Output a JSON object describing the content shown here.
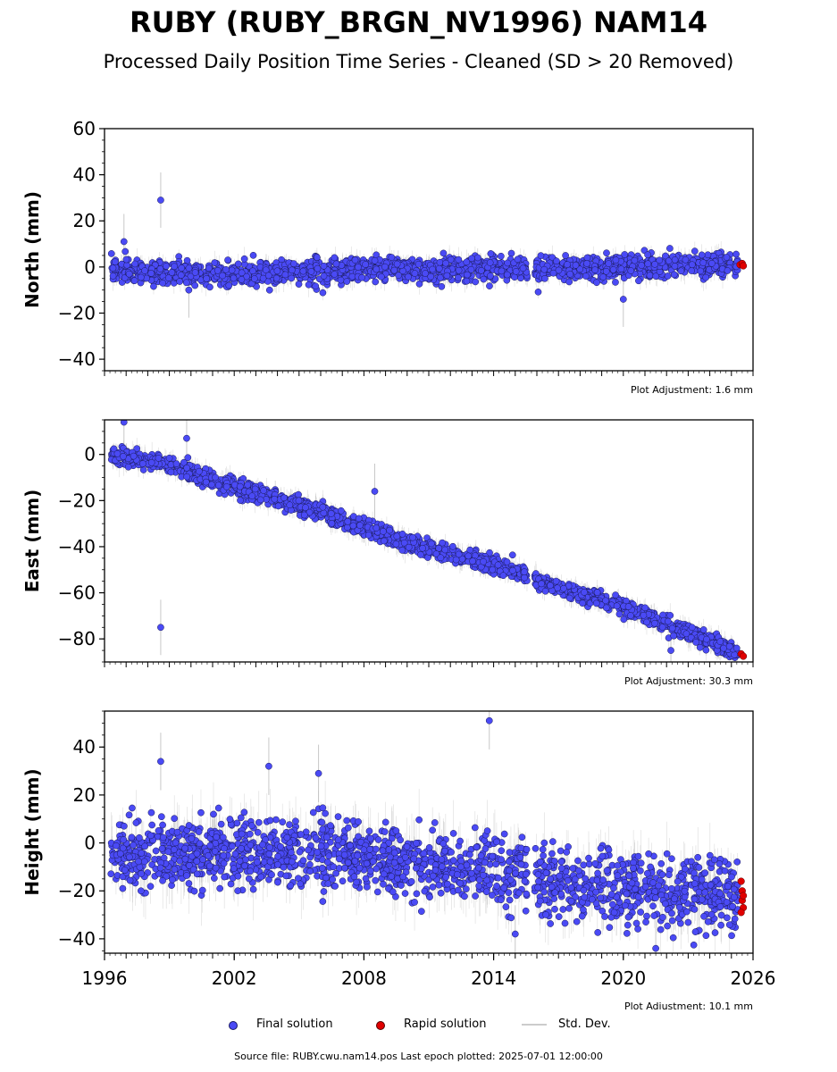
{
  "header": {
    "title": "RUBY (RUBY_BRGN_NV1996) NAM14",
    "subtitle": "Processed Daily Position Time Series - Cleaned (SD > 20 Removed)"
  },
  "chart_data": [
    {
      "type": "scatter",
      "ylabel": "North (mm)",
      "ylim": [
        -45,
        60
      ],
      "yticks": [
        -40,
        -20,
        0,
        20,
        40,
        60
      ],
      "xlim": [
        1996,
        2026
      ],
      "adjustment": "Plot Adjustment: 1.6 mm",
      "trend": [
        [
          1996.3,
          -1
        ],
        [
          1999.5,
          -3
        ],
        [
          2003,
          -3
        ],
        [
          2008,
          -1
        ],
        [
          2015,
          -1
        ],
        [
          2020,
          0
        ],
        [
          2025.5,
          1.5
        ]
      ],
      "scatter_sd": 2.5,
      "outliers": [
        [
          1998.6,
          29
        ],
        [
          2020.0,
          -14
        ],
        [
          1996.9,
          11
        ],
        [
          1999.9,
          -10
        ]
      ],
      "rapid_points": [
        [
          2025.4,
          1
        ],
        [
          2025.5,
          1.5
        ],
        [
          2025.55,
          0.5
        ]
      ]
    },
    {
      "type": "scatter",
      "ylabel": "East (mm)",
      "ylim": [
        -90,
        15
      ],
      "yticks": [
        -80,
        -60,
        -40,
        -20,
        0
      ],
      "xlim": [
        1996,
        2026
      ],
      "adjustment": "Plot Adjustment: 30.3 mm",
      "trend": [
        [
          1996.3,
          0
        ],
        [
          1999.3,
          -5
        ],
        [
          2000.5,
          -10
        ],
        [
          2005,
          -22
        ],
        [
          2010,
          -38
        ],
        [
          2015.5,
          -52
        ],
        [
          2016,
          -55
        ],
        [
          2020,
          -66
        ],
        [
          2025.5,
          -87
        ]
      ],
      "scatter_sd": 1.8,
      "outliers": [
        [
          1998.6,
          -75
        ],
        [
          1996.9,
          14
        ],
        [
          1999.8,
          7
        ],
        [
          2008.5,
          -16
        ],
        [
          2022.2,
          -85
        ]
      ],
      "rapid_points": [
        [
          2025.45,
          -86.5
        ],
        [
          2025.55,
          -87.5
        ]
      ]
    },
    {
      "type": "scatter",
      "ylabel": "Height (mm)",
      "ylim": [
        -46,
        55
      ],
      "yticks": [
        -40,
        -20,
        0,
        20,
        40
      ],
      "xlim": [
        1996,
        2026
      ],
      "xticks": [
        1996,
        2002,
        2008,
        2014,
        2020,
        2026
      ],
      "adjustment": "Plot Adjustment: 10.1 mm",
      "trend": [
        [
          1996.3,
          -5
        ],
        [
          2002,
          -4
        ],
        [
          2008,
          -6
        ],
        [
          2012,
          -10
        ],
        [
          2015.5,
          -12
        ],
        [
          2016,
          -17
        ],
        [
          2020,
          -20
        ],
        [
          2025.5,
          -22
        ]
      ],
      "scatter_sd": 7,
      "outliers": [
        [
          2013.8,
          51
        ],
        [
          1998.6,
          34
        ],
        [
          2003.6,
          32
        ],
        [
          2005.9,
          29
        ],
        [
          2015.0,
          -38
        ],
        [
          2021.5,
          -44
        ]
      ],
      "rapid_points": [
        [
          2025.45,
          -16
        ],
        [
          2025.5,
          -20
        ],
        [
          2025.5,
          -24
        ],
        [
          2025.55,
          -27
        ],
        [
          2025.45,
          -29
        ],
        [
          2025.55,
          -22
        ]
      ]
    }
  ],
  "legend": {
    "final": "Final solution",
    "rapid": "Rapid solution",
    "sd": "Std. Dev.",
    "colors": {
      "final": "#4a4af5",
      "rapid": "#e00000",
      "sd": "#b0b0b0"
    }
  },
  "footer": {
    "source": "Source file: RUBY.cwu.nam14.pos  Last epoch plotted: 2025-07-01 12:00:00"
  }
}
